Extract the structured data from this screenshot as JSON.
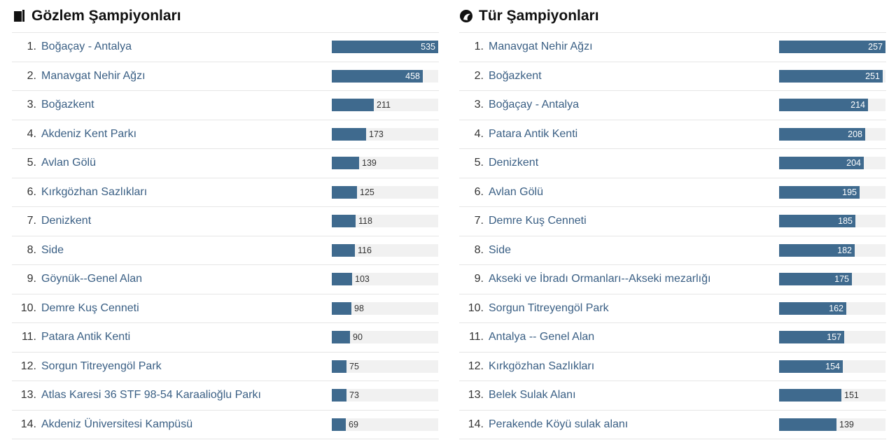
{
  "left": {
    "title": "Gözlem Şampiyonları",
    "icon": "book-icon",
    "max": 535,
    "rows": [
      {
        "rank": "1.",
        "name": "Boğaçay - Antalya",
        "value": 535
      },
      {
        "rank": "2.",
        "name": "Manavgat Nehir Ağzı",
        "value": 458
      },
      {
        "rank": "3.",
        "name": "Boğazkent",
        "value": 211
      },
      {
        "rank": "4.",
        "name": "Akdeniz Kent Parkı",
        "value": 173
      },
      {
        "rank": "5.",
        "name": "Avlan Gölü",
        "value": 139
      },
      {
        "rank": "6.",
        "name": "Kırkgözhan Sazlıkları",
        "value": 125
      },
      {
        "rank": "7.",
        "name": "Denizkent",
        "value": 118
      },
      {
        "rank": "8.",
        "name": "Side",
        "value": 116
      },
      {
        "rank": "9.",
        "name": "Göynük--Genel Alan",
        "value": 103
      },
      {
        "rank": "10.",
        "name": "Demre Kuş Cenneti",
        "value": 98
      },
      {
        "rank": "11.",
        "name": "Patara Antik Kenti",
        "value": 90
      },
      {
        "rank": "12.",
        "name": "Sorgun Titreyengöl Park",
        "value": 75
      },
      {
        "rank": "13.",
        "name": "Atlas Karesi 36 STF 98-54 Karaalioğlu Parkı",
        "value": 73
      },
      {
        "rank": "14.",
        "name": "Akdeniz Üniversitesi Kampüsü",
        "value": 69
      }
    ]
  },
  "right": {
    "title": "Tür Şampiyonları",
    "icon": "bird-icon",
    "max": 257,
    "rows": [
      {
        "rank": "1.",
        "name": "Manavgat Nehir Ağzı",
        "value": 257
      },
      {
        "rank": "2.",
        "name": "Boğazkent",
        "value": 251
      },
      {
        "rank": "3.",
        "name": "Boğaçay - Antalya",
        "value": 214
      },
      {
        "rank": "4.",
        "name": "Patara Antik Kenti",
        "value": 208
      },
      {
        "rank": "5.",
        "name": "Denizkent",
        "value": 204
      },
      {
        "rank": "6.",
        "name": "Avlan Gölü",
        "value": 195
      },
      {
        "rank": "7.",
        "name": "Demre Kuş Cenneti",
        "value": 185
      },
      {
        "rank": "8.",
        "name": "Side",
        "value": 182
      },
      {
        "rank": "9.",
        "name": "Akseki ve İbradı Ormanları--Akseki mezarlığı",
        "value": 175
      },
      {
        "rank": "10.",
        "name": "Sorgun Titreyengöl Park",
        "value": 162
      },
      {
        "rank": "11.",
        "name": "Antalya -- Genel Alan",
        "value": 157
      },
      {
        "rank": "12.",
        "name": "Kırkgözhan Sazlıkları",
        "value": 154
      },
      {
        "rank": "13.",
        "name": "Belek Sulak Alanı",
        "value": 151
      },
      {
        "rank": "14.",
        "name": "Perakende Köyü sulak alanı",
        "value": 139
      }
    ]
  },
  "colors": {
    "bar": "#3f6a8e",
    "track": "#f1f1f1",
    "link": "#3a5f84"
  }
}
